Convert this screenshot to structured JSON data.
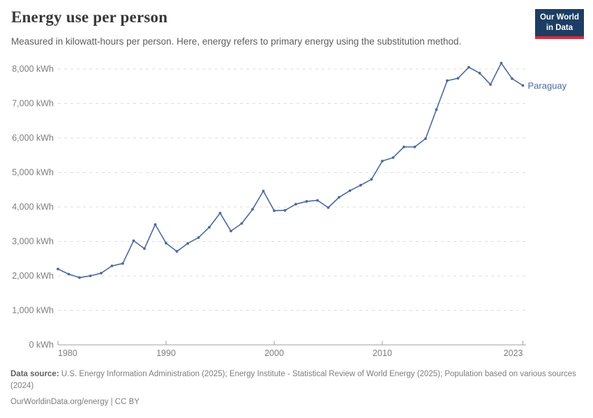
{
  "header": {
    "title": "Energy use per person",
    "subtitle": "Measured in kilowatt-hours per person. Here, energy refers to primary energy using the substitution method.",
    "logo": {
      "line1": "Our World",
      "line2": "in Data"
    }
  },
  "chart_data": {
    "type": "line",
    "title": "Energy use per person",
    "xlabel": "",
    "ylabel": "kWh per person",
    "unit": "kWh",
    "xlim": [
      1980,
      2023
    ],
    "ylim": [
      0,
      8000
    ],
    "grid": "horizontal-dashed",
    "legend_position": "end-of-line-label",
    "end_label": "Paraguay",
    "x": [
      1980,
      1981,
      1982,
      1983,
      1984,
      1985,
      1986,
      1987,
      1988,
      1989,
      1990,
      1991,
      1992,
      1993,
      1994,
      1995,
      1996,
      1997,
      1998,
      1999,
      2000,
      2001,
      2002,
      2003,
      2004,
      2005,
      2006,
      2007,
      2008,
      2009,
      2010,
      2011,
      2012,
      2013,
      2014,
      2015,
      2016,
      2017,
      2018,
      2019,
      2020,
      2021,
      2022,
      2023
    ],
    "series": [
      {
        "name": "Paraguay",
        "color": "#4c6a9c",
        "values": [
          2200,
          2050,
          1950,
          2000,
          2080,
          2290,
          2360,
          3020,
          2790,
          3490,
          2950,
          2710,
          2940,
          3110,
          3410,
          3820,
          3300,
          3520,
          3930,
          4460,
          3890,
          3900,
          4080,
          4160,
          4190,
          3980,
          4280,
          4470,
          4630,
          4800,
          5330,
          5430,
          5740,
          5740,
          5980,
          6820,
          7660,
          7730,
          8050,
          7880,
          7550,
          8170,
          7720,
          7520
        ]
      }
    ],
    "yticks": [
      {
        "value": 0,
        "label": "0 kWh"
      },
      {
        "value": 1000,
        "label": "1,000 kWh"
      },
      {
        "value": 2000,
        "label": "2,000 kWh"
      },
      {
        "value": 3000,
        "label": "3,000 kWh"
      },
      {
        "value": 4000,
        "label": "4,000 kWh"
      },
      {
        "value": 5000,
        "label": "5,000 kWh"
      },
      {
        "value": 6000,
        "label": "6,000 kWh"
      },
      {
        "value": 7000,
        "label": "7,000 kWh"
      },
      {
        "value": 8000,
        "label": "8,000 kWh"
      }
    ],
    "xticks": [
      {
        "value": 1980,
        "label": "1980",
        "align": "start"
      },
      {
        "value": 1990,
        "label": "1990",
        "align": "middle"
      },
      {
        "value": 2000,
        "label": "2000",
        "align": "middle"
      },
      {
        "value": 2010,
        "label": "2010",
        "align": "middle"
      },
      {
        "value": 2023,
        "label": "2023",
        "align": "end"
      }
    ]
  },
  "footer": {
    "datasource_label": "Data source:",
    "datasource_text": " U.S. Energy Information Administration (2025); Energy Institute - Statistical Review of World Energy (2025); Population based on various sources (2024)",
    "license": "OurWorldinData.org/energy | CC BY"
  },
  "colors": {
    "line": "#4c6a9c",
    "grid": "#dcdcdc",
    "axis": "#a0a0a0",
    "tick_text": "#7e7e7e",
    "logo_bg": "#1d3d63",
    "logo_bar": "#cf303e"
  }
}
